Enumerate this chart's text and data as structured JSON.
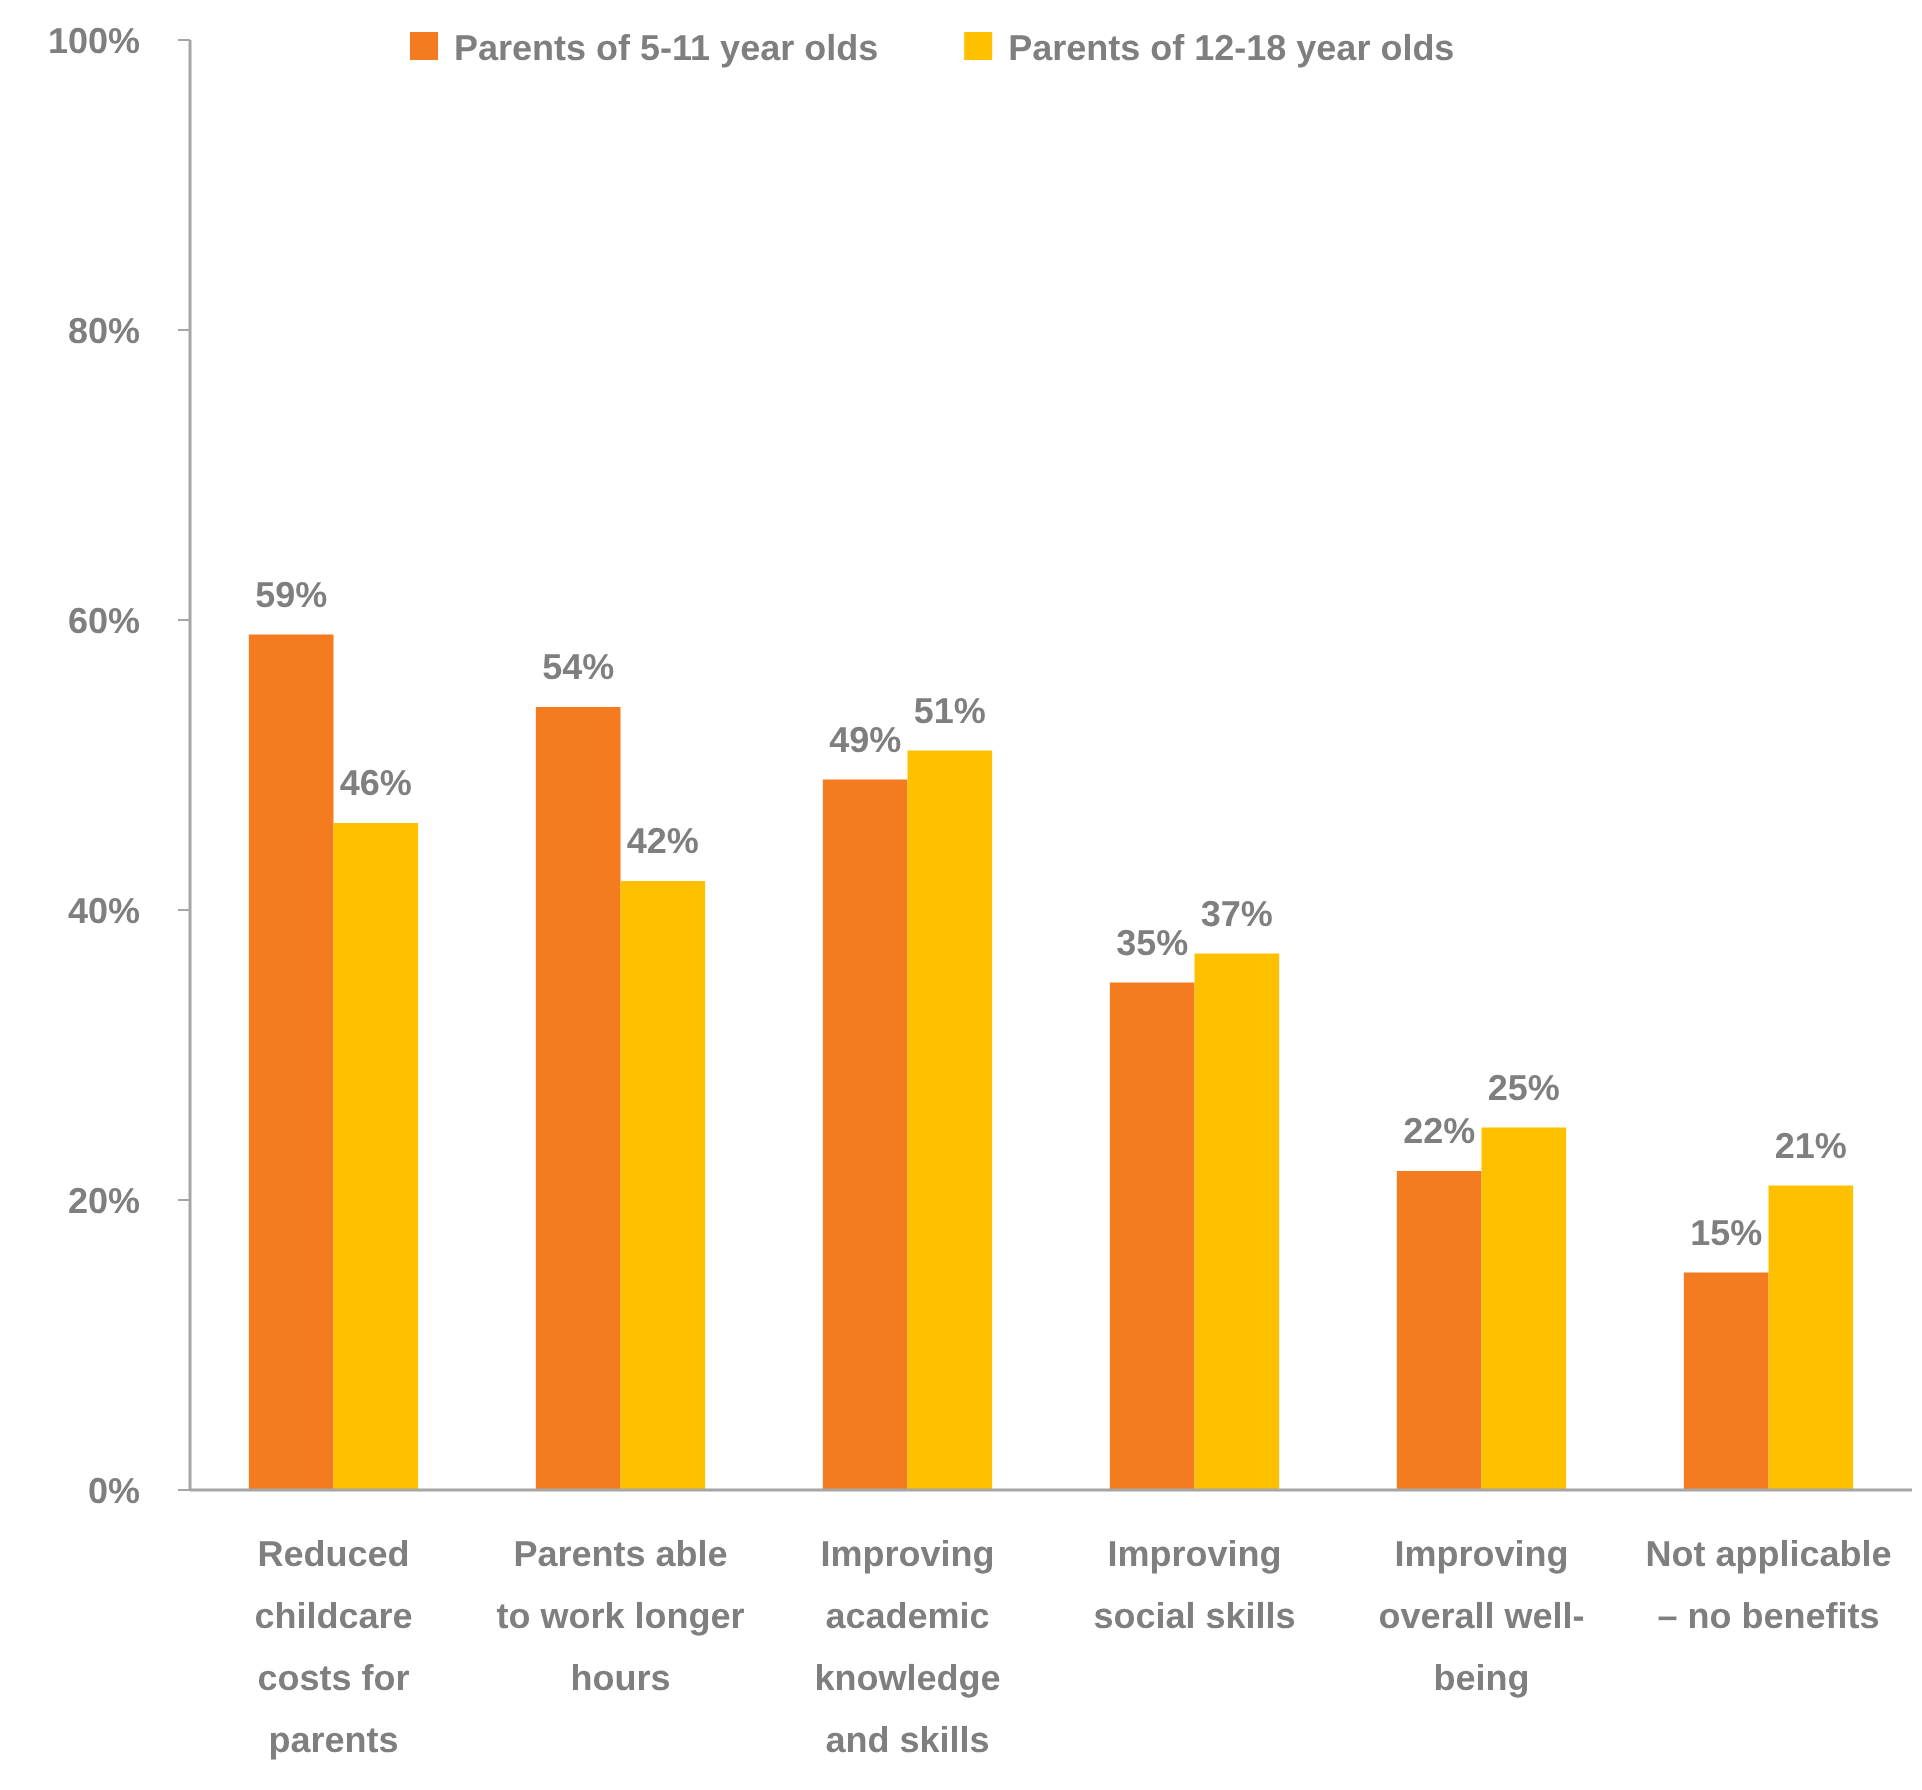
{
  "chart_data": {
    "type": "bar",
    "categories": [
      "Reduced childcare costs for parents",
      "Parents able to work longer hours",
      "Improving academic knowledge and skills",
      "Improving social skills",
      "Improving overall well-being",
      "Not applicable – no benefits"
    ],
    "series": [
      {
        "name": "Parents of 5-11 year olds",
        "color": "#f47b20",
        "values": [
          59,
          54,
          49,
          35,
          22,
          15
        ],
        "value_labels": [
          "59%",
          "54%",
          "49%",
          "35%",
          "22%",
          "15%"
        ]
      },
      {
        "name": "Parents of 12-18 year olds",
        "color": "#ffc000",
        "values": [
          46,
          42,
          51,
          37,
          25,
          21
        ],
        "value_labels": [
          "46%",
          "42%",
          "51%",
          "37%",
          "25%",
          "21%"
        ]
      }
    ],
    "ylim": [
      0,
      100
    ],
    "yticks": [
      {
        "value": 0,
        "label": "0%"
      },
      {
        "value": 20,
        "label": "20%"
      },
      {
        "value": 40,
        "label": "40%"
      },
      {
        "value": 60,
        "label": "60%"
      },
      {
        "value": 80,
        "label": "80%"
      },
      {
        "value": 100,
        "label": "100%"
      }
    ],
    "legend": "top",
    "grid": false
  }
}
